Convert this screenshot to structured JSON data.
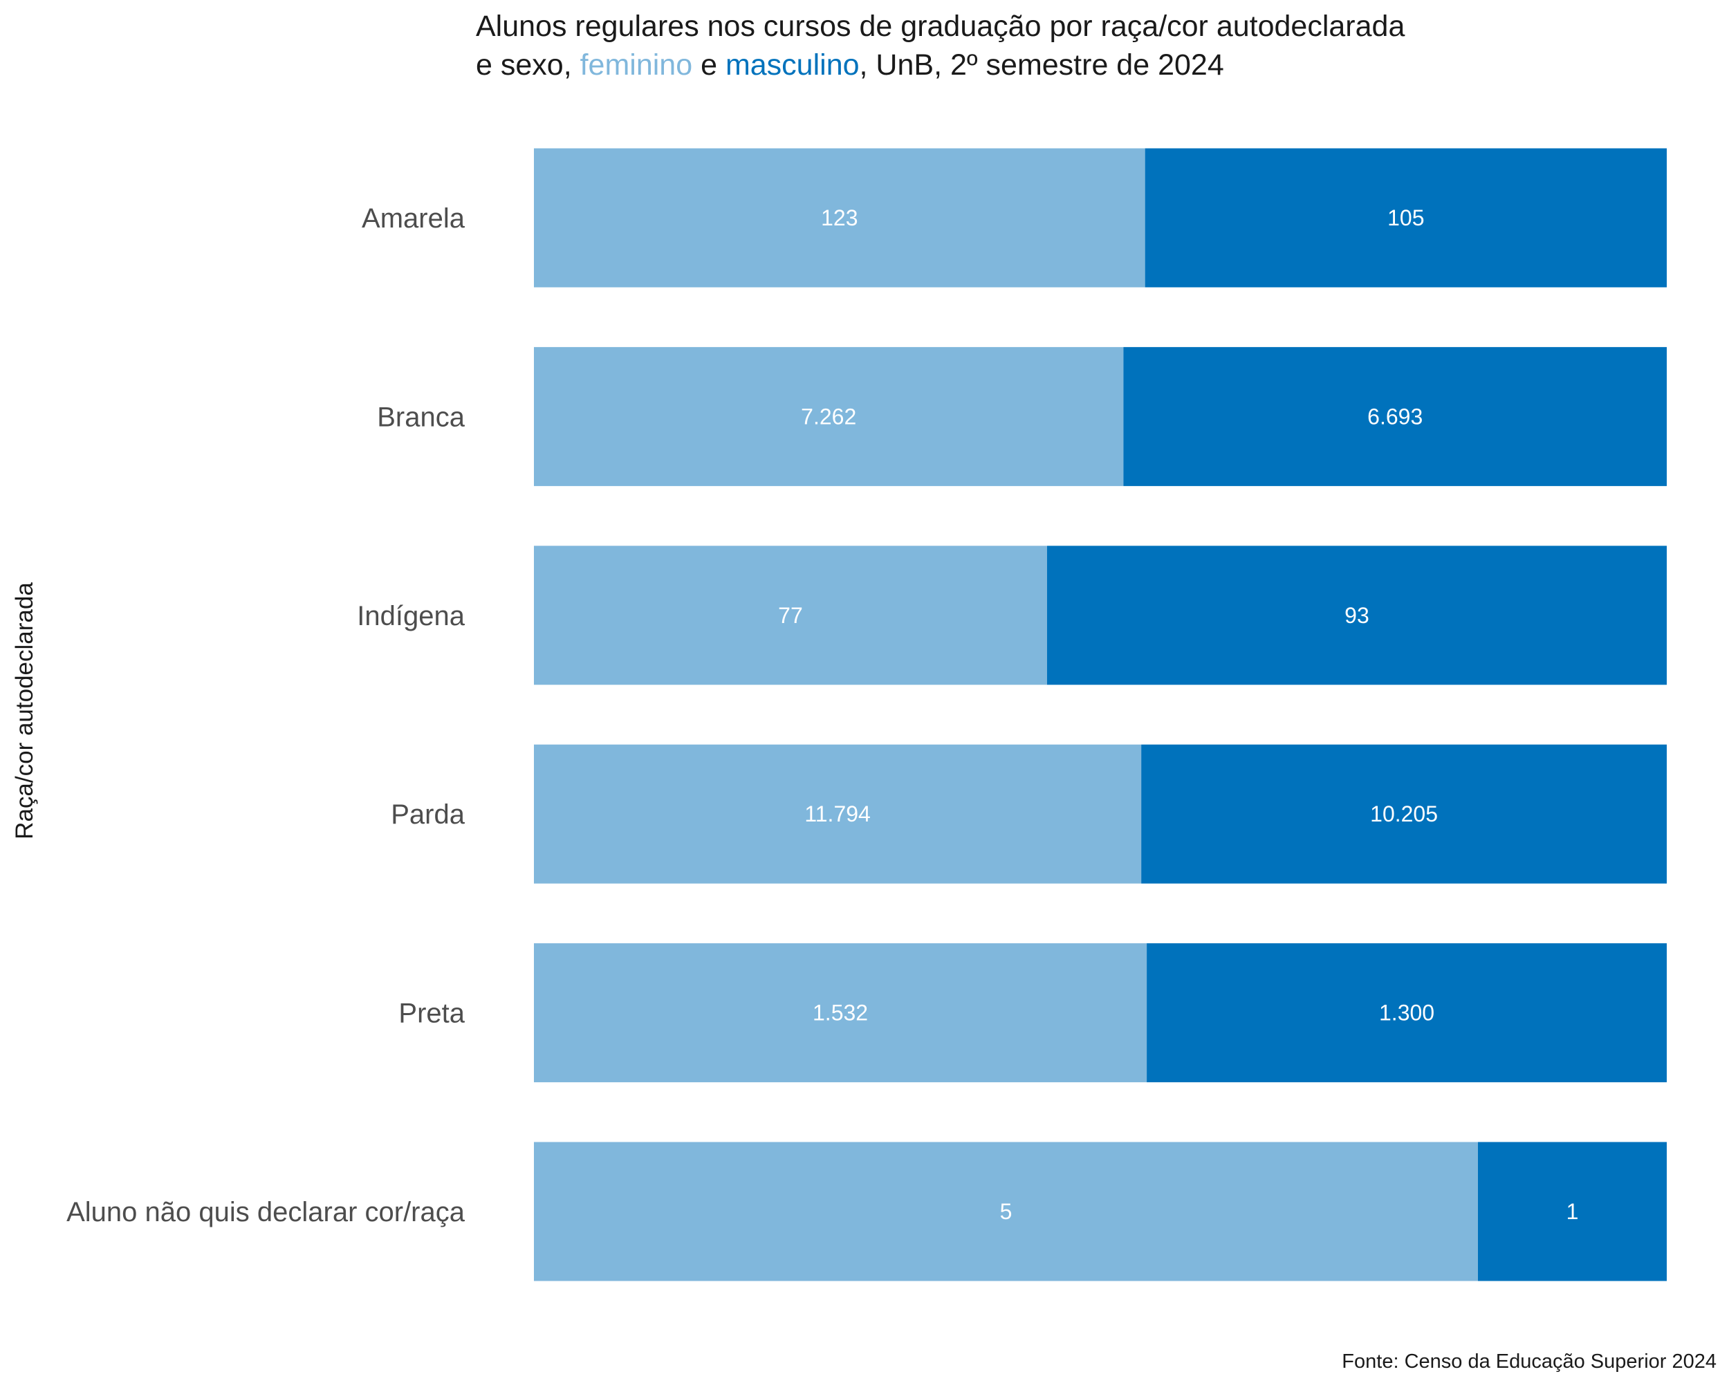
{
  "chart_data": {
    "type": "bar",
    "orientation": "horizontal",
    "stacking": "percent",
    "title": {
      "line1": "Alunos regulares nos cursos de graduação por raça/cor autodeclarada",
      "line2_prefix": "e sexo, ",
      "line2_series_a": "feminino",
      "line2_mid": " e ",
      "line2_series_b": "masculino",
      "line2_suffix": ", UnB, 2º semestre de 2024"
    },
    "ylabel": "Raça/cor autodeclarada",
    "xlabel": "",
    "caption": "Fonte: Censo da Educação Superior 2024",
    "categories": [
      "Amarela",
      "Branca",
      "Indígena",
      "Parda",
      "Preta",
      "Aluno não quis declarar cor/raça"
    ],
    "series": [
      {
        "name": "feminino",
        "color": "#80B7DC",
        "values": [
          123,
          7262,
          77,
          11794,
          1532,
          5
        ],
        "labels": [
          "123",
          "7.262",
          "77",
          "11.794",
          "1.532",
          "5"
        ]
      },
      {
        "name": "masculino",
        "color": "#0072BC",
        "values": [
          105,
          6693,
          93,
          10205,
          1300,
          1
        ],
        "labels": [
          "105",
          "6.693",
          "93",
          "10.205",
          "1.300",
          "1"
        ]
      }
    ],
    "grid": false,
    "legend": "none"
  }
}
